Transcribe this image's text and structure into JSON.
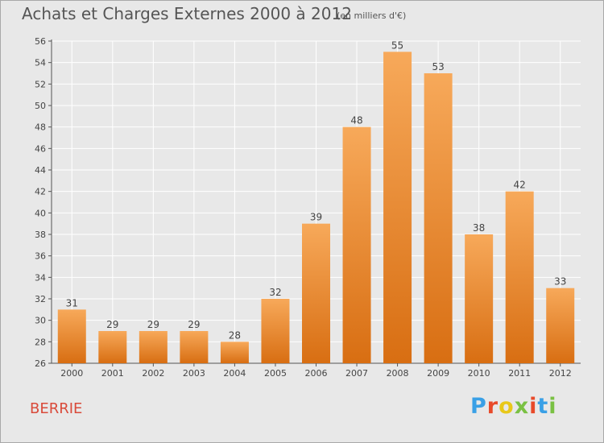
{
  "header": {
    "title": "Achats et Charges Externes 2000 à 2012",
    "subtitle": "(en milliers d'€)"
  },
  "footer": {
    "town": "BERRIE",
    "logo_text": "Proxiti"
  },
  "colors": {
    "background": "#e8e8e8",
    "bar_top": "#f7a95a",
    "bar_bottom": "#d86e12",
    "town": "#d94a3a",
    "logo": [
      "#3aa0e6",
      "#e84a2a",
      "#e8c81a",
      "#7ac143",
      "#e84a2a",
      "#3aa0e6",
      "#7ac143"
    ]
  },
  "chart_data": {
    "type": "bar",
    "title": "Achats et Charges Externes 2000 à 2012",
    "subtitle": "(en milliers d'€)",
    "xlabel": "",
    "ylabel": "",
    "categories": [
      "2000",
      "2001",
      "2002",
      "2003",
      "2004",
      "2005",
      "2006",
      "2007",
      "2008",
      "2009",
      "2010",
      "2011",
      "2012"
    ],
    "values": [
      31,
      29,
      29,
      29,
      28,
      32,
      39,
      48,
      55,
      53,
      38,
      42,
      33
    ],
    "ylim": [
      26,
      56
    ],
    "yticks": [
      26,
      28,
      30,
      32,
      34,
      36,
      38,
      40,
      42,
      44,
      46,
      48,
      50,
      52,
      54,
      56
    ],
    "grid": true
  }
}
